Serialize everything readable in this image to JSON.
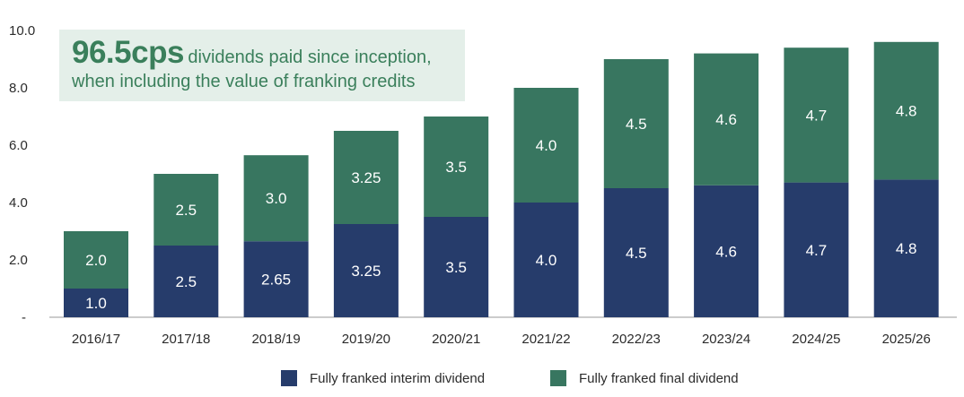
{
  "chart_data": {
    "type": "bar",
    "stacked": true,
    "categories": [
      "2016/17",
      "2017/18",
      "2018/19",
      "2019/20",
      "2020/21",
      "2021/22",
      "2022/23",
      "2023/24",
      "2024/25",
      "2025/26"
    ],
    "series": [
      {
        "name": "Fully franked interim dividend",
        "color": "#263c6b",
        "values": [
          1.0,
          2.5,
          2.65,
          3.25,
          3.5,
          4.0,
          4.5,
          4.6,
          4.7,
          4.8
        ],
        "labels": [
          "1.0",
          "2.5",
          "2.65",
          "3.25",
          "3.5",
          "4.0",
          "4.5",
          "4.6",
          "4.7",
          "4.8"
        ]
      },
      {
        "name": "Fully franked final dividend",
        "color": "#387660",
        "values": [
          2.0,
          2.5,
          3.0,
          3.25,
          3.5,
          4.0,
          4.5,
          4.6,
          4.7,
          4.8
        ],
        "labels": [
          "2.0",
          "2.5",
          "3.0",
          "3.25",
          "3.5",
          "4.0",
          "4.5",
          "4.6",
          "4.7",
          "4.8"
        ]
      }
    ],
    "yticks": [
      "-",
      "2.0",
      "4.0",
      "6.0",
      "8.0",
      "10.0"
    ],
    "ylim": [
      0,
      10
    ],
    "grid": false,
    "legend": "bottom"
  },
  "callout": {
    "highlight": "96.5cps",
    "line1_rest": "dividends paid since inception,",
    "line2": "when including the value of franking credits"
  }
}
